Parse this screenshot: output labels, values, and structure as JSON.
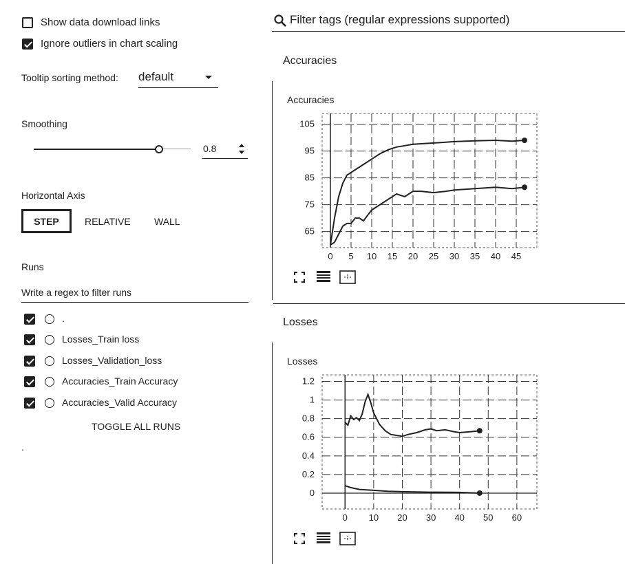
{
  "sidebar": {
    "show_download": {
      "label": "Show data download links",
      "checked": false
    },
    "ignore_outliers": {
      "label": "Ignore outliers in chart scaling",
      "checked": true
    },
    "tooltip": {
      "label": "Tooltip sorting method:",
      "value": "default"
    },
    "smoothing": {
      "label": "Smoothing",
      "value": "0.8",
      "level": 0.8
    },
    "horizontal_axis": {
      "label": "Horizontal Axis",
      "options": [
        "STEP",
        "RELATIVE",
        "WALL"
      ],
      "selected": "STEP"
    },
    "runs": {
      "label": "Runs",
      "filter_placeholder": "Write a regex to filter runs",
      "items": [
        {
          "label": ".",
          "checked": true
        },
        {
          "label": "Losses_Train loss",
          "checked": true
        },
        {
          "label": "Losses_Validation_loss",
          "checked": true
        },
        {
          "label": "Accuracies_Train Accuracy",
          "checked": true
        },
        {
          "label": "Accuracies_Valid Accuracy",
          "checked": true
        }
      ],
      "toggle_label": "TOGGLE ALL RUNS"
    },
    "footer_dot": "."
  },
  "main": {
    "filter_placeholder": "Filter tags (regular expressions supported)",
    "groups": [
      {
        "title": "Accuracies",
        "card_title": "Accuracies"
      },
      {
        "title": "Losses",
        "card_title": "Losses"
      }
    ]
  },
  "chart_data": [
    {
      "type": "line",
      "title": "Accuracies",
      "xlim": [
        -2,
        50
      ],
      "ylim": [
        59,
        109
      ],
      "x_ticks": [
        0,
        5,
        10,
        15,
        20,
        25,
        30,
        35,
        40,
        45
      ],
      "y_ticks": [
        65,
        75,
        85,
        95,
        105
      ],
      "grid": true,
      "series": [
        {
          "x": [
            0,
            1,
            2,
            3,
            4,
            5,
            6,
            8,
            10,
            12,
            14,
            16,
            18,
            20,
            25,
            30,
            35,
            40,
            44,
            47
          ],
          "y": [
            60,
            70,
            78,
            83,
            86,
            87,
            88,
            90,
            92,
            94,
            95.5,
            96.5,
            97,
            97.5,
            98,
            98.5,
            98.8,
            99,
            98.7,
            99
          ]
        },
        {
          "x": [
            0,
            1,
            2,
            3,
            4,
            5,
            6,
            7,
            8,
            9,
            10,
            11,
            12,
            14,
            16,
            18,
            20,
            22,
            25,
            28,
            30,
            35,
            40,
            44,
            47
          ],
          "y": [
            60,
            61,
            64,
            67,
            68,
            68,
            70,
            70,
            69,
            71,
            73,
            74,
            75,
            77,
            79,
            78,
            80,
            80,
            79.5,
            80,
            80.5,
            81,
            81.5,
            81,
            81.5
          ]
        }
      ]
    },
    {
      "type": "line",
      "title": "Losses",
      "xlim": [
        -8,
        67
      ],
      "ylim": [
        -0.17,
        1.27
      ],
      "x_ticks": [
        0,
        10,
        20,
        30,
        40,
        50,
        60
      ],
      "y_ticks": [
        0,
        0.2,
        0.4,
        0.6,
        0.8,
        1,
        1.2
      ],
      "grid": true,
      "series": [
        {
          "x": [
            0,
            1,
            2,
            3,
            4,
            5,
            6,
            7,
            8,
            9,
            10,
            12,
            14,
            16,
            18,
            20,
            22,
            25,
            28,
            30,
            32,
            35,
            38,
            40,
            44,
            47
          ],
          "y": [
            0.76,
            0.73,
            0.83,
            0.79,
            0.81,
            0.78,
            0.85,
            0.98,
            1.06,
            0.97,
            0.86,
            0.74,
            0.67,
            0.63,
            0.62,
            0.61,
            0.63,
            0.65,
            0.68,
            0.69,
            0.67,
            0.68,
            0.66,
            0.65,
            0.66,
            0.67
          ]
        },
        {
          "x": [
            0,
            2,
            5,
            10,
            15,
            20,
            30,
            40,
            47
          ],
          "y": [
            0.08,
            0.06,
            0.04,
            0.03,
            0.02,
            0.015,
            0.01,
            0.008,
            0.0
          ]
        }
      ]
    }
  ]
}
